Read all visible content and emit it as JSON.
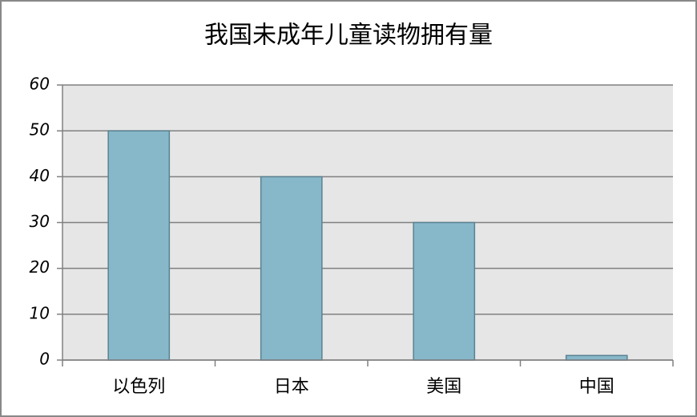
{
  "chart_data": {
    "type": "bar",
    "title": "我国未成年儿童读物拥有量",
    "categories": [
      "以色列",
      "日本",
      "美国",
      "中国"
    ],
    "values": [
      50,
      40,
      30,
      1
    ],
    "color": "#86b8c9",
    "ylim": [
      0,
      60
    ],
    "yticks": [
      0,
      10,
      20,
      30,
      40,
      50,
      60
    ],
    "grid": true
  }
}
